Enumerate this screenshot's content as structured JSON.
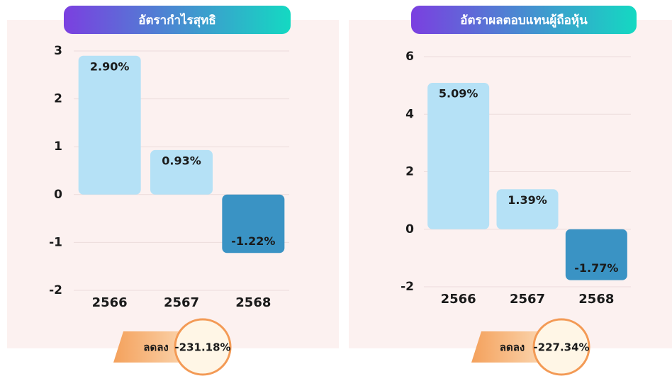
{
  "chart_data": [
    {
      "type": "bar",
      "title": "อัตรากำไรสุทธิ",
      "categories": [
        "2566",
        "2567",
        "2568"
      ],
      "values": [
        2.9,
        0.93,
        -1.22
      ],
      "value_labels": [
        "2.90%",
        "0.93%",
        "-1.22%"
      ],
      "colors": [
        "#b5e1f6",
        "#b5e1f6",
        "#3a93c4"
      ],
      "ylim": [
        -2,
        3
      ],
      "yticks": [
        -2,
        -1,
        0,
        1,
        2,
        3
      ],
      "grid": true,
      "badge_label": "ลดลง",
      "badge_text": "-231.18%"
    },
    {
      "type": "bar",
      "title": "อัตราผลตอบแทนผู้ถือหุ้น",
      "categories": [
        "2566",
        "2567",
        "2568"
      ],
      "values": [
        5.09,
        1.39,
        -1.77
      ],
      "value_labels": [
        "5.09%",
        "1.39%",
        "-1.77%"
      ],
      "colors": [
        "#b5e1f6",
        "#b5e1f6",
        "#3a93c4"
      ],
      "ylim": [
        -2,
        6
      ],
      "yticks": [
        -2,
        0,
        2,
        4,
        6
      ],
      "grid": true,
      "badge_label": "ลดลง",
      "badge_text": "-227.34%"
    }
  ]
}
